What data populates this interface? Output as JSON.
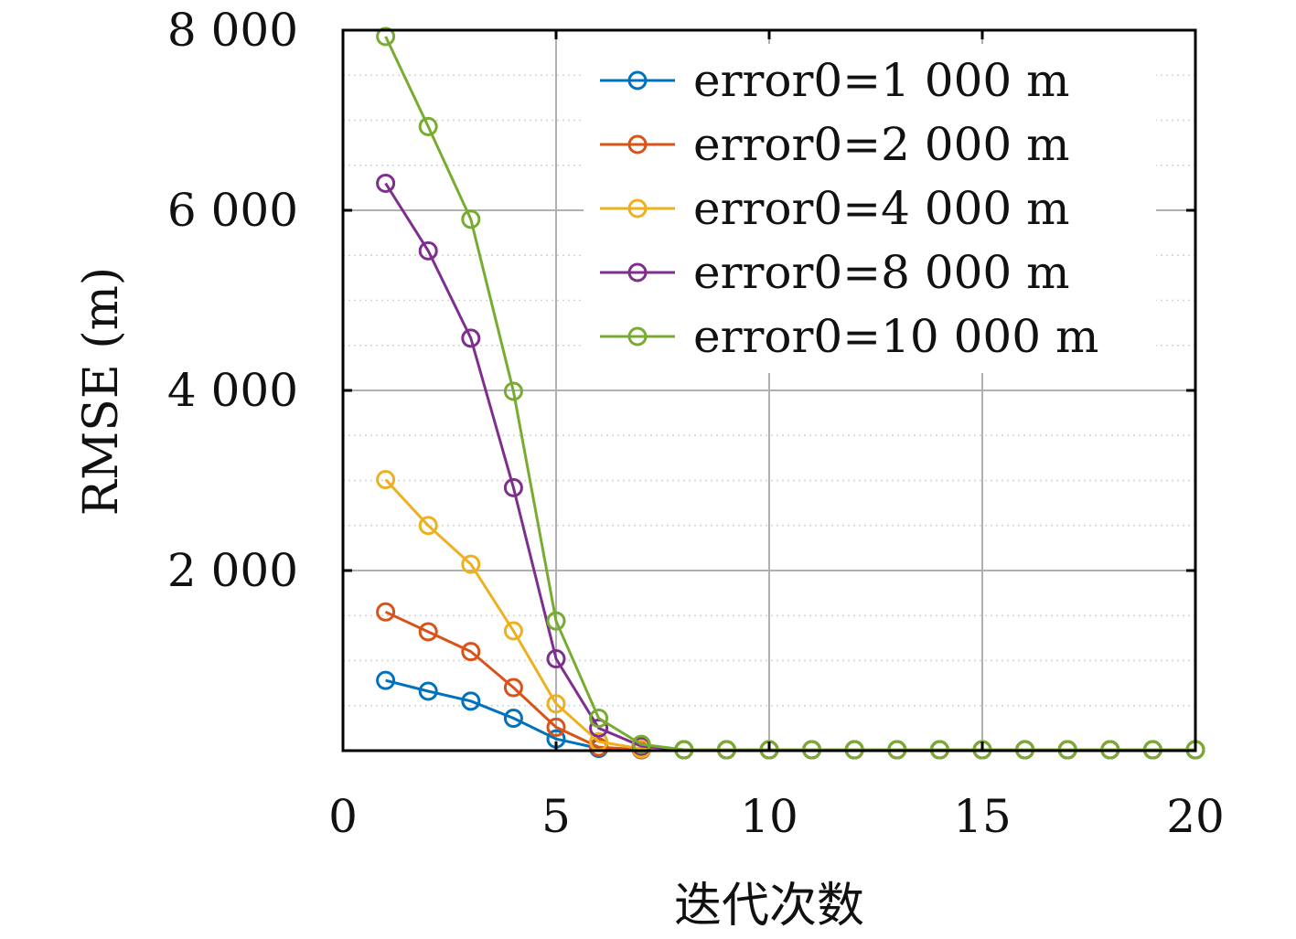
{
  "chart_data": {
    "type": "line",
    "xlabel": "迭代次数",
    "ylabel": "RMSE (m)",
    "xlim": [
      0,
      20
    ],
    "ylim": [
      0,
      8000
    ],
    "x_ticks": [
      0,
      5,
      10,
      15,
      20
    ],
    "x_tick_labels": [
      "0",
      "5",
      "10",
      "15",
      "20"
    ],
    "y_ticks": [
      2000,
      4000,
      6000,
      8000
    ],
    "y_tick_labels": [
      "2 000",
      "4 000",
      "6 000",
      "8 000"
    ],
    "grid": true,
    "legend_position": "top-right",
    "x": [
      1,
      2,
      3,
      4,
      5,
      6,
      7,
      8,
      9,
      10,
      11,
      12,
      13,
      14,
      15,
      16,
      17,
      18,
      19,
      20
    ],
    "series": [
      {
        "name": "error0=1 000 m",
        "color": "#0072BD",
        "values": [
          780,
          660,
          550,
          360,
          130,
          25,
          10,
          10,
          10,
          10,
          10,
          10,
          10,
          10,
          10,
          10,
          10,
          10,
          10,
          10
        ]
      },
      {
        "name": "error0=2 000 m",
        "color": "#D95319",
        "values": [
          1540,
          1320,
          1100,
          700,
          260,
          40,
          10,
          10,
          10,
          10,
          10,
          10,
          10,
          10,
          10,
          10,
          10,
          10,
          10,
          10
        ]
      },
      {
        "name": "error0=4 000 m",
        "color": "#EDB120",
        "values": [
          3010,
          2500,
          2070,
          1330,
          520,
          100,
          20,
          10,
          10,
          10,
          10,
          10,
          10,
          10,
          10,
          10,
          10,
          10,
          10,
          10
        ]
      },
      {
        "name": "error0=8 000 m",
        "color": "#7E2F8E",
        "values": [
          6300,
          5550,
          4580,
          2920,
          1020,
          250,
          50,
          10,
          10,
          10,
          10,
          10,
          10,
          10,
          10,
          10,
          10,
          10,
          10,
          10
        ]
      },
      {
        "name": "error0=10 000 m",
        "color": "#77AC30",
        "values": [
          7930,
          6930,
          5900,
          3990,
          1440,
          360,
          70,
          10,
          10,
          10,
          10,
          10,
          10,
          10,
          10,
          10,
          10,
          10,
          10,
          10
        ]
      }
    ]
  }
}
